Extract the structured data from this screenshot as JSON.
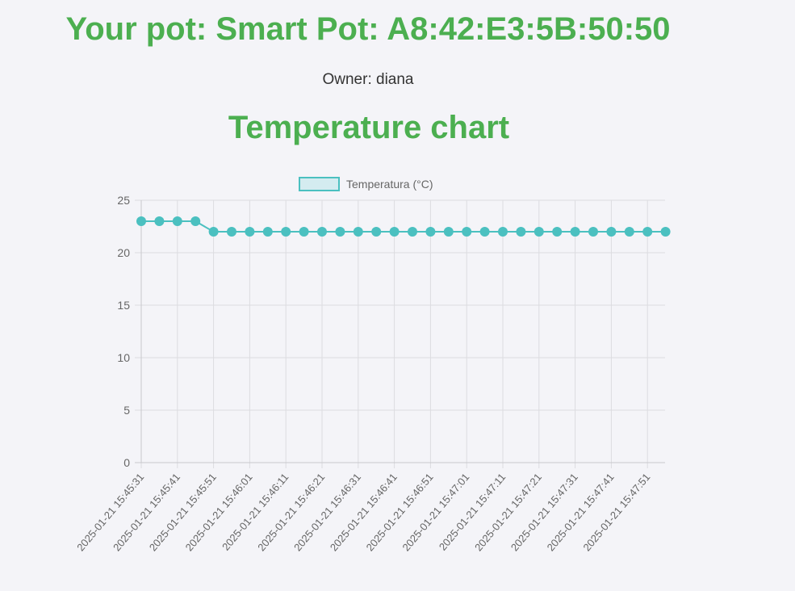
{
  "header": {
    "pot_title": "Your pot: Smart Pot: A8:42:E3:5B:50:50",
    "owner": "Owner: diana"
  },
  "chart_title": "Temperature chart",
  "colors": {
    "accent_green": "#4caf50",
    "series_line": "#4bc0c0",
    "series_fill": "#d4ecf0"
  },
  "chart_data": {
    "type": "line",
    "title": "",
    "xlabel": "",
    "ylabel": "",
    "ylim": [
      0,
      25
    ],
    "yticks": [
      0,
      5,
      10,
      15,
      20,
      25
    ],
    "grid": true,
    "legend_position": "top-center",
    "x_tick_labels": [
      "2025-01-21 15:45:31",
      "2025-01-21 15:45:41",
      "2025-01-21 15:45:51",
      "2025-01-21 15:46:01",
      "2025-01-21 15:46:11",
      "2025-01-21 15:46:21",
      "2025-01-21 15:46:31",
      "2025-01-21 15:46:41",
      "2025-01-21 15:46:51",
      "2025-01-21 15:47:01",
      "2025-01-21 15:47:11",
      "2025-01-21 15:47:21",
      "2025-01-21 15:47:31",
      "2025-01-21 15:47:41",
      "2025-01-21 15:47:51"
    ],
    "series": [
      {
        "name": "Temperatura (°C)",
        "values": [
          23,
          23,
          23,
          23,
          22,
          22,
          22,
          22,
          22,
          22,
          22,
          22,
          22,
          22,
          22,
          22,
          22,
          22,
          22,
          22,
          22,
          22,
          22,
          22,
          22,
          22,
          22,
          22,
          22,
          22
        ]
      }
    ]
  }
}
